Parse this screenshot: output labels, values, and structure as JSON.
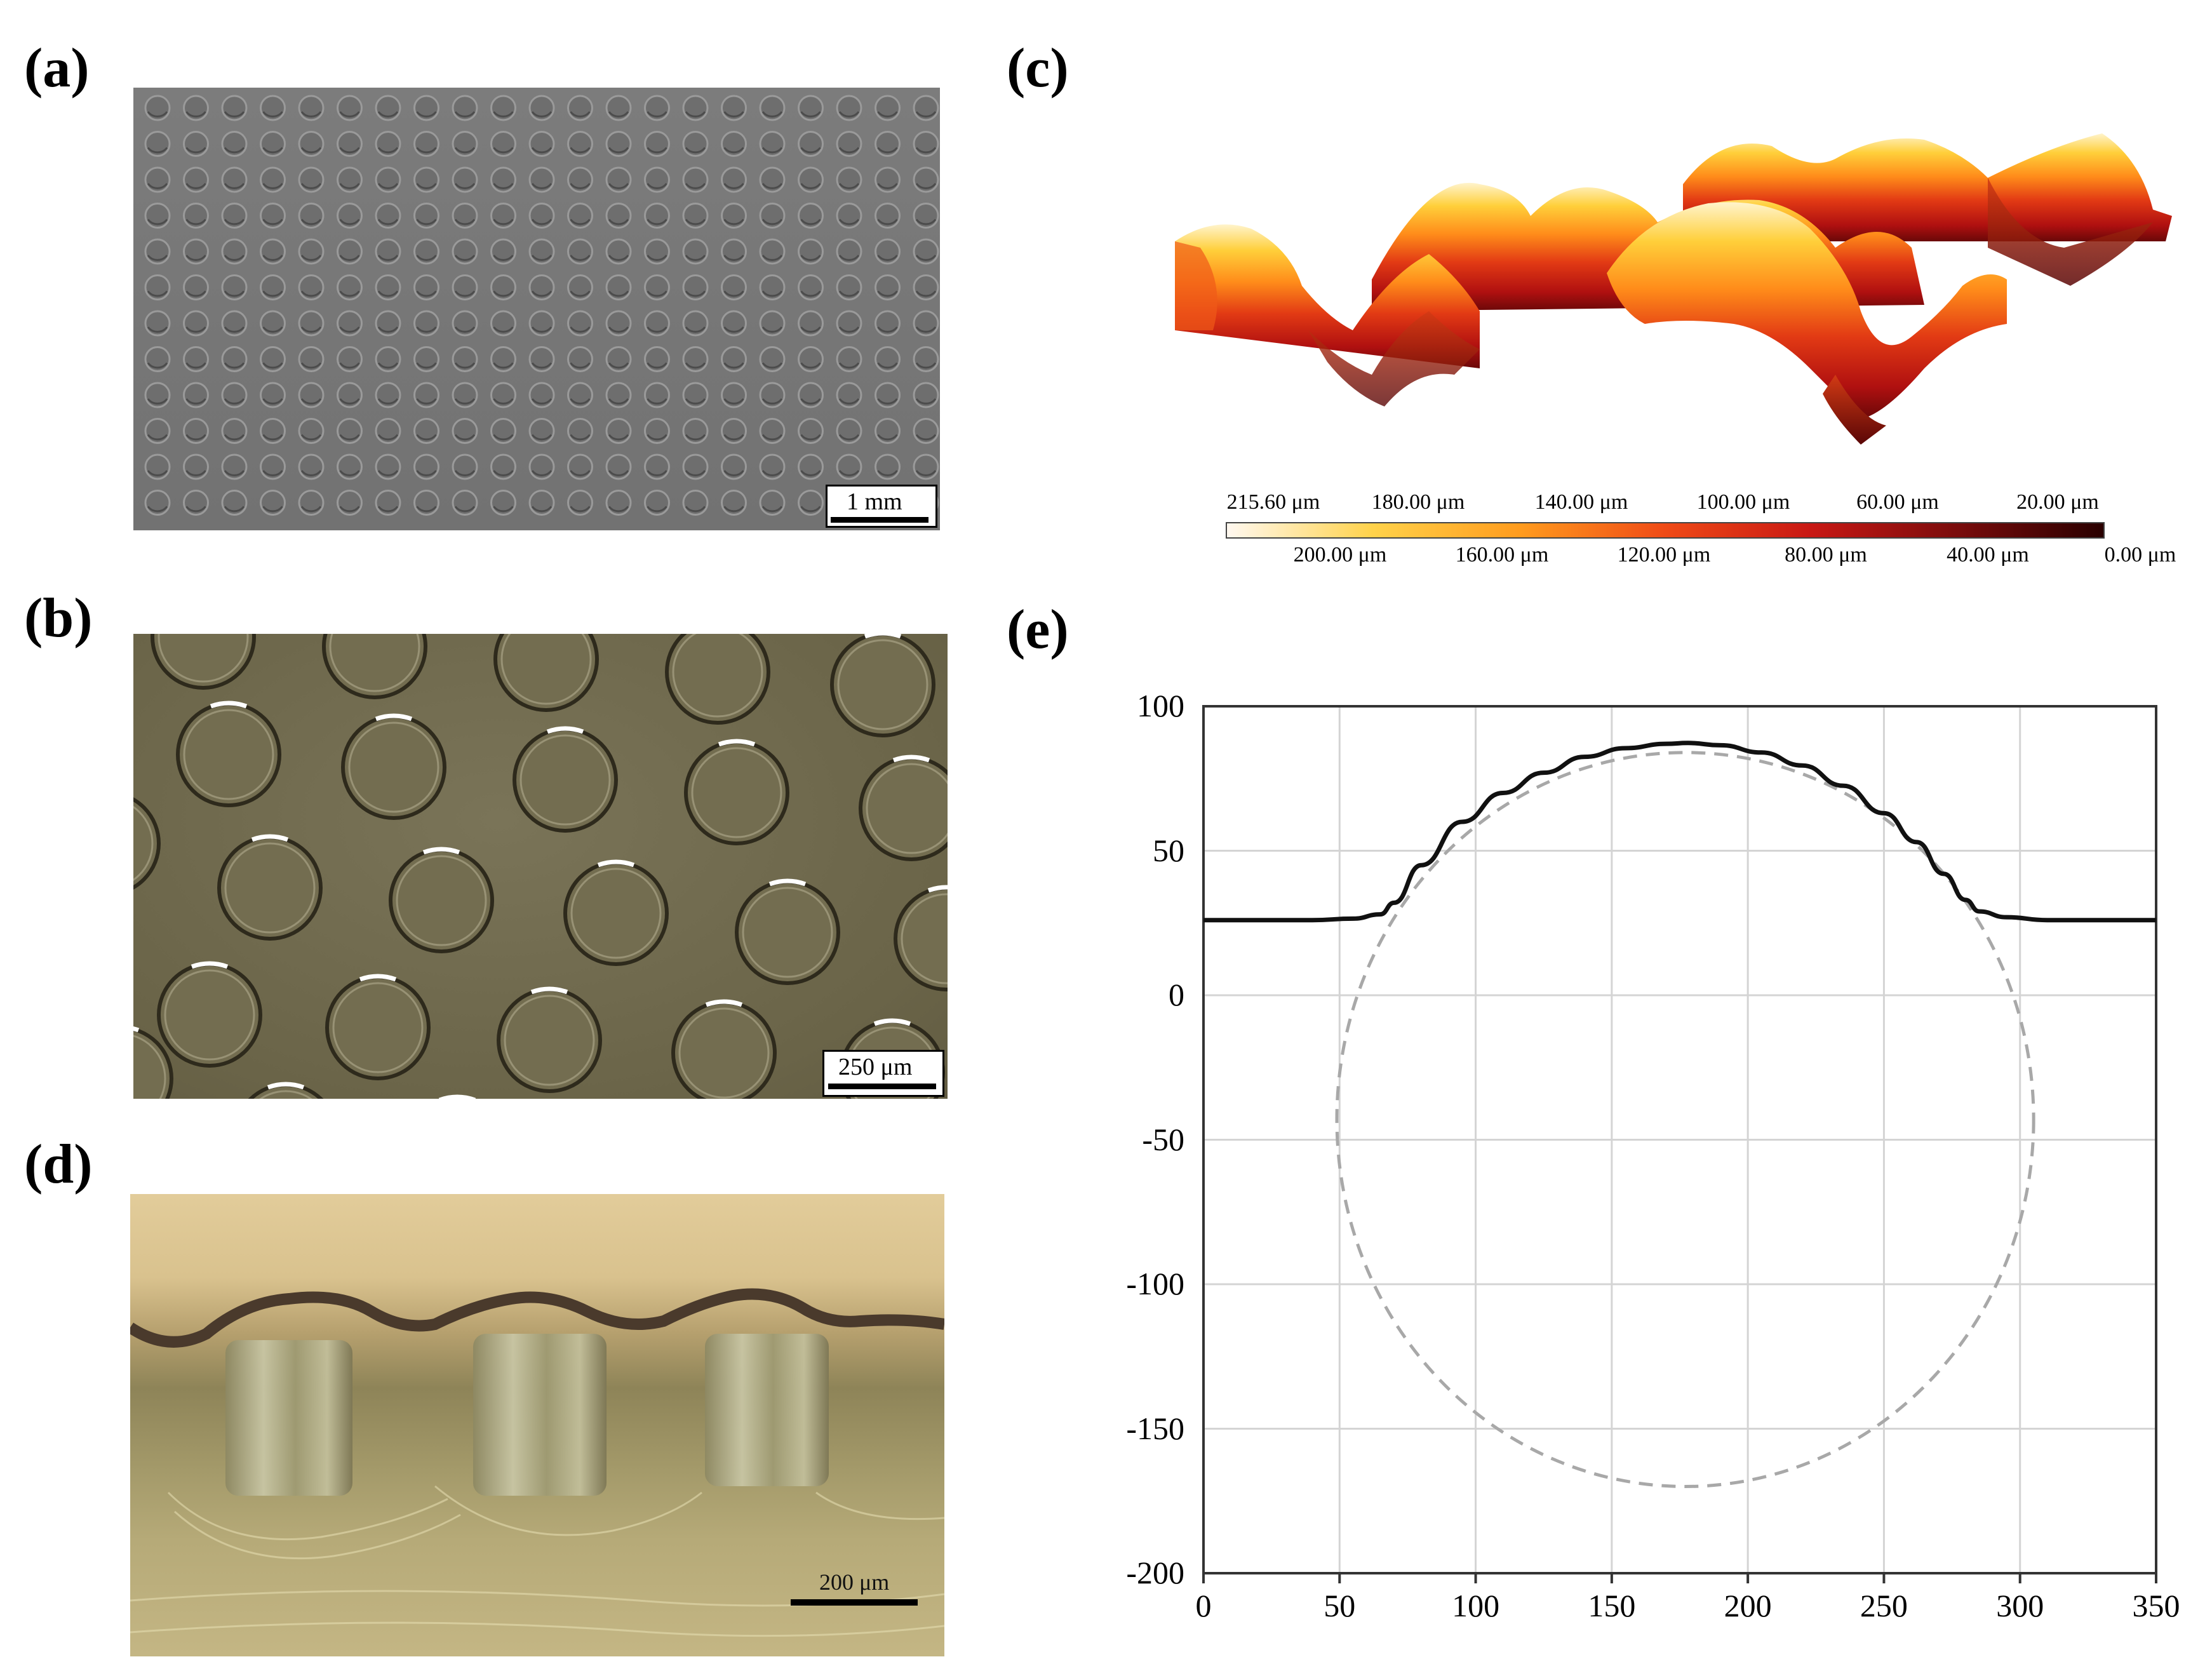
{
  "panels": {
    "a": {
      "label": "(a)",
      "scale_bar": "1 mm",
      "well_rows": 12,
      "well_cols": 21
    },
    "b": {
      "label": "(b)",
      "scale_bar": "250 μm"
    },
    "c": {
      "label": "(c)",
      "colorbar": {
        "top_labels": [
          "215.60 μm",
          "180.00 μm",
          "140.00 μm",
          "100.00 μm",
          "60.00 μm",
          "20.00 μm"
        ],
        "bottom_labels": [
          "200.00 μm",
          "160.00 μm",
          "120.00 μm",
          "80.00 μm",
          "40.00 μm",
          "0.00 μm"
        ],
        "colors": [
          "#fff8f0",
          "#ffd24a",
          "#ff9c1e",
          "#ef4a16",
          "#c81814",
          "#7a0c0c",
          "#2a0000"
        ]
      }
    },
    "d": {
      "label": "(d)",
      "scale_bar": "200 μm"
    },
    "e": {
      "label": "(e)"
    }
  },
  "chart_data": {
    "type": "line",
    "xlim": [
      0,
      350
    ],
    "ylim": [
      -200,
      100
    ],
    "x_ticks": [
      "0",
      "50",
      "100",
      "150",
      "200",
      "250",
      "300",
      "350"
    ],
    "y_ticks": [
      "100",
      "50",
      "0",
      "-50",
      "-100",
      "-150",
      "-200"
    ],
    "grid": true,
    "series": [
      {
        "style": "solid",
        "x": [
          0,
          40,
          55,
          65,
          70,
          80,
          95,
          110,
          125,
          140,
          155,
          170,
          178,
          190,
          205,
          220,
          235,
          250,
          262,
          272,
          280,
          285,
          295,
          310,
          350
        ],
        "y": [
          26,
          26,
          26.5,
          28,
          32,
          45,
          60,
          70,
          77,
          82.5,
          85.5,
          87,
          87.3,
          86.5,
          84,
          79.5,
          72.5,
          63,
          53,
          42,
          33,
          29,
          27,
          26,
          26
        ]
      },
      {
        "style": "dashed",
        "shape": "ellipse",
        "center": [
          177,
          -43
        ],
        "radius_x": 128,
        "radius_y": 127
      }
    ]
  }
}
